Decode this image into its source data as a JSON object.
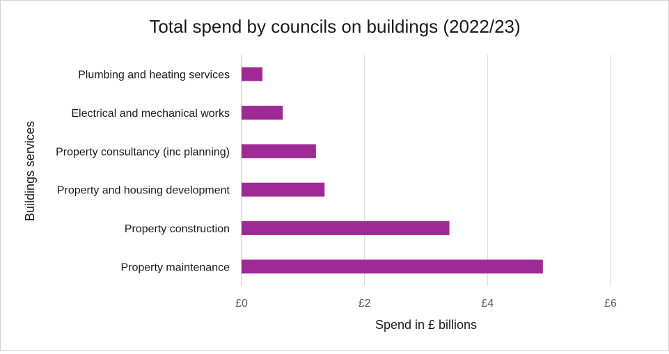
{
  "chart_data": {
    "type": "bar",
    "orientation": "horizontal",
    "title": "Total spend by councils on buildings (2022/23)",
    "xlabel": "Spend in £ billions",
    "ylabel": "Buildings services",
    "categories": [
      "Plumbing and heating services",
      "Electrical and mechanical works",
      "Property consultancy (inc planning)",
      "Property and housing development",
      "Property construction",
      "Property maintenance"
    ],
    "values": [
      0.34,
      0.67,
      1.21,
      1.35,
      3.38,
      4.9
    ],
    "xlim": [
      0,
      6
    ],
    "xticks": [
      0,
      2,
      4,
      6
    ],
    "xtick_labels": [
      "£0",
      "£2",
      "£4",
      "£6"
    ],
    "bar_color": "#a02a95",
    "grid": "vertical",
    "legend": "none"
  }
}
